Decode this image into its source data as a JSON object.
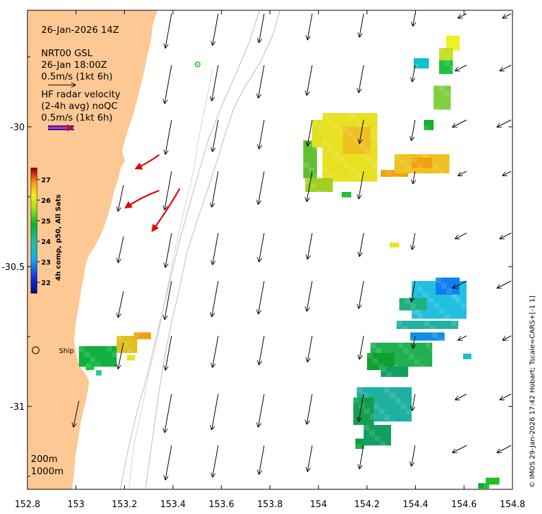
{
  "map": {
    "timestamp": "26-Jan-2026 14Z",
    "product": "NRT00 GSL",
    "product_time": "26-Jan 18:00Z",
    "product_scale": "0.5m/s (1kt 6h)",
    "radar_line1": "HF radar velocity",
    "radar_line2": "(2-4h avg) noQC",
    "radar_scale": "0.5m/s (1kt 6h)",
    "colorbar_label": "4h comp, p50, All Sats",
    "colorbar_ticks": [
      "27",
      "26",
      "25",
      "24",
      "23",
      "22"
    ],
    "depth1": "200m",
    "depth2": "1000m",
    "ship_label": "Ship",
    "credit": "© IMOS 29-Jan-2026 17:42 Hobart; Tscale=CARS+[-1 1]",
    "x_ticks": [
      "152.8",
      "153",
      "153.2",
      "153.4",
      "153.6",
      "153.8",
      "154",
      "154.2",
      "154.4",
      "154.6",
      "154.8"
    ],
    "y_ticks": [
      "-30",
      "-30.5",
      "-31"
    ],
    "colors": {
      "land": "#fdc894",
      "arrow": "#000000",
      "radar_arrow": "#e00000",
      "scale_blue": "#1010ff"
    },
    "icons": [
      "ship-marker-icon",
      "mooring-marker-icon",
      "colorbar-icon"
    ]
  }
}
